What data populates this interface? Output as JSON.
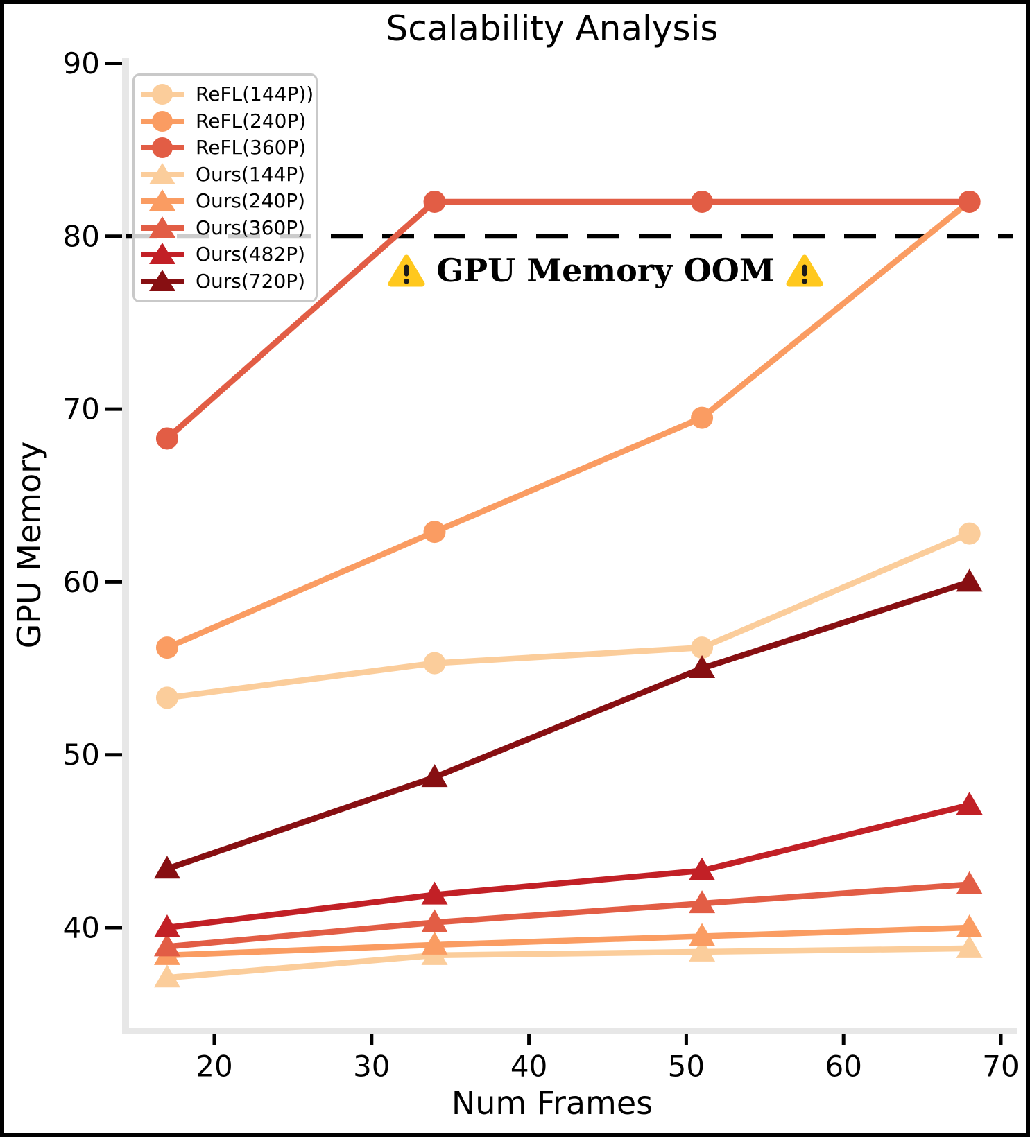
{
  "figure": {
    "title": "Scalability Analysis",
    "ylabel": "GPU Memory",
    "xlabel": "Num Frames"
  },
  "annotation": {
    "text": "GPU Memory OOM",
    "icon": "warning-triangle"
  },
  "chart_data": {
    "type": "line",
    "title": "Scalability Analysis",
    "xlabel": "Num Frames",
    "ylabel": "GPU Memory",
    "xlim": [
      14.4,
      70.8
    ],
    "ylim": [
      34.2,
      90.2
    ],
    "x_ticks": [
      20,
      30,
      40,
      50,
      60,
      70
    ],
    "y_ticks": [
      40,
      50,
      60,
      70,
      80,
      90
    ],
    "grid": false,
    "legend_position": "upper-left",
    "x": [
      17,
      34,
      51,
      68
    ],
    "series": [
      {
        "name": "ReFL(144P))",
        "marker": "circle",
        "color": "#FBCD9B",
        "values": [
          53.3,
          55.3,
          56.2,
          62.8
        ]
      },
      {
        "name": "ReFL(240P)",
        "marker": "circle",
        "color": "#FA9C62",
        "values": [
          56.2,
          62.9,
          69.5,
          82.0
        ]
      },
      {
        "name": "ReFL(360P)",
        "marker": "circle",
        "color": "#E25D45",
        "values": [
          68.3,
          82.0,
          82.0,
          82.0
        ]
      },
      {
        "name": "Ours(144P)",
        "marker": "triangle",
        "color": "#FBCD9B",
        "values": [
          37.1,
          38.4,
          38.6,
          38.8
        ]
      },
      {
        "name": "Ours(240P)",
        "marker": "triangle",
        "color": "#FA9C62",
        "values": [
          38.4,
          39.0,
          39.5,
          40.0
        ]
      },
      {
        "name": "Ours(360P)",
        "marker": "triangle",
        "color": "#E25D45",
        "values": [
          38.9,
          40.3,
          41.4,
          42.5
        ]
      },
      {
        "name": "Ours(482P)",
        "marker": "triangle",
        "color": "#C22026",
        "values": [
          40.0,
          41.9,
          43.3,
          47.1
        ]
      },
      {
        "name": "Ours(720P)",
        "marker": "triangle",
        "color": "#870F12",
        "values": [
          43.4,
          48.7,
          55.0,
          60.0
        ]
      }
    ],
    "threshold_line": {
      "y": 80,
      "style": "dashed",
      "color": "#000000",
      "label": "GPU Memory OOM"
    }
  },
  "style": {
    "background": "#FFFFFF",
    "frame_color": "#000000",
    "spine_color": "#E7E7E7",
    "tick_color": "#000000",
    "legend_border_color": "#C9C9C9",
    "warning_yellow": "#FFC81E",
    "warning_mark": "#1A1A1A"
  }
}
